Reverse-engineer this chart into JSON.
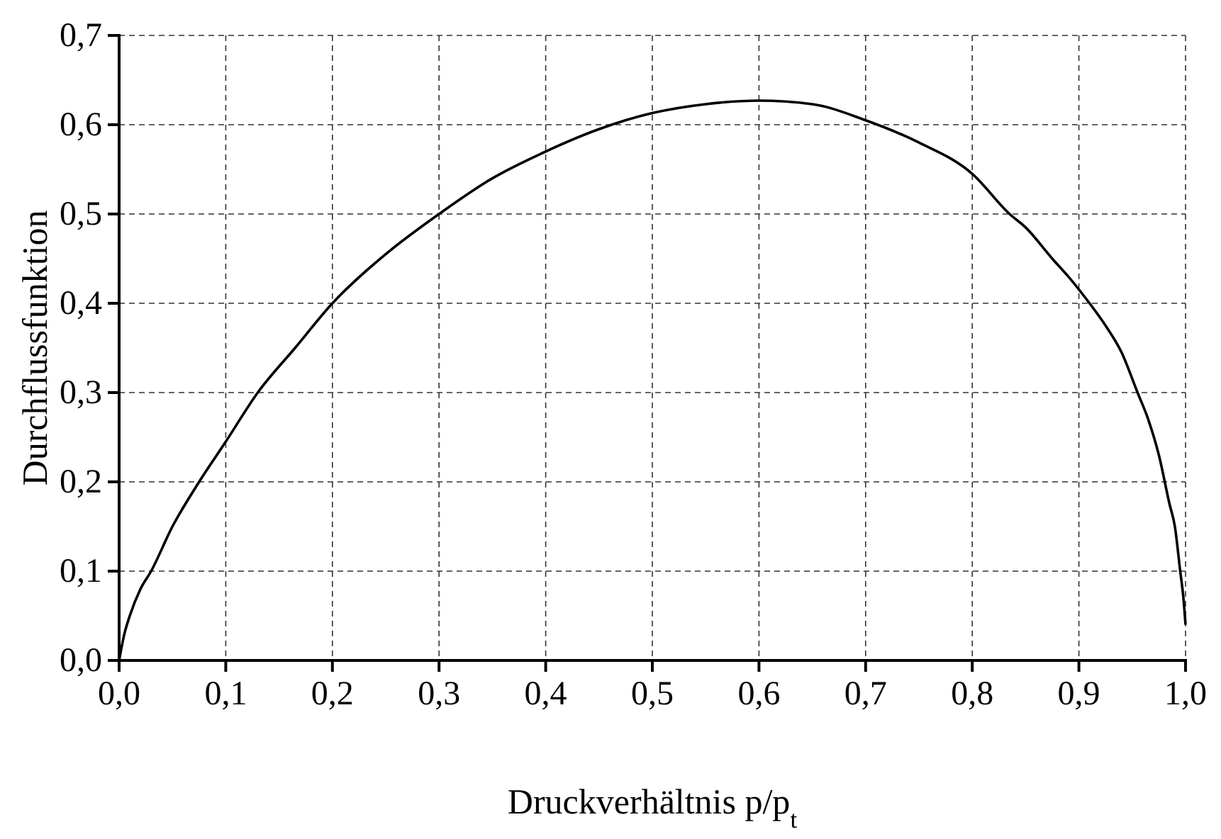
{
  "chart_data": {
    "type": "line",
    "xlabel": "Druckverhältnis p/p$_{t}$",
    "ylabel": "Durchflussfunktion",
    "xlim": [
      0,
      1
    ],
    "ylim": [
      0,
      0.7
    ],
    "xticks": [
      {
        "value": 0,
        "label": "0,0"
      },
      {
        "value": 0.1,
        "label": "0,1"
      },
      {
        "value": 0.2,
        "label": "0,2"
      },
      {
        "value": 0.3,
        "label": "0,3"
      },
      {
        "value": 0.4,
        "label": "0,4"
      },
      {
        "value": 0.5,
        "label": "0,5"
      },
      {
        "value": 0.6,
        "label": "0,6"
      },
      {
        "value": 0.7,
        "label": "0,7"
      },
      {
        "value": 0.8,
        "label": "0,8"
      },
      {
        "value": 0.9,
        "label": "0,9"
      },
      {
        "value": 1,
        "label": "1,0"
      }
    ],
    "yticks": [
      {
        "value": 0,
        "label": "0,0"
      },
      {
        "value": 0.1,
        "label": "0,1"
      },
      {
        "value": 0.2,
        "label": "0,2"
      },
      {
        "value": 0.3,
        "label": "0,3"
      },
      {
        "value": 0.4,
        "label": "0,4"
      },
      {
        "value": 0.5,
        "label": "0,5"
      },
      {
        "value": 0.6,
        "label": "0,6"
      },
      {
        "value": 0.7,
        "label": "0,7"
      }
    ],
    "grid": true,
    "line_style": "solid",
    "marker": "none",
    "series": [
      {
        "color": "#000000",
        "x": [
          0,
          0.005,
          0.01,
          0.02,
          0.03,
          0.05,
          0.075,
          0.1,
          0.13,
          0.165,
          0.2,
          0.25,
          0.3,
          0.35,
          0.4,
          0.45,
          0.5,
          0.55,
          0.6,
          0.65,
          0.7,
          0.75,
          0.8,
          0.835,
          0.85,
          0.875,
          0.89,
          0.91,
          0.925,
          0.94,
          0.955,
          0.965,
          0.975,
          0.985,
          0.99,
          0.995,
          0.998,
          1
        ],
        "values": [
          0,
          0.03,
          0.05,
          0.08,
          0.1,
          0.15,
          0.2,
          0.245,
          0.3,
          0.35,
          0.4,
          0.455,
          0.5,
          0.54,
          0.57,
          0.595,
          0.613,
          0.623,
          0.627,
          0.623,
          0.605,
          0.58,
          0.545,
          0.5,
          0.485,
          0.45,
          0.43,
          0.4,
          0.375,
          0.345,
          0.3,
          0.27,
          0.23,
          0.175,
          0.15,
          0.1,
          0.07,
          0.04
        ]
      }
    ]
  }
}
